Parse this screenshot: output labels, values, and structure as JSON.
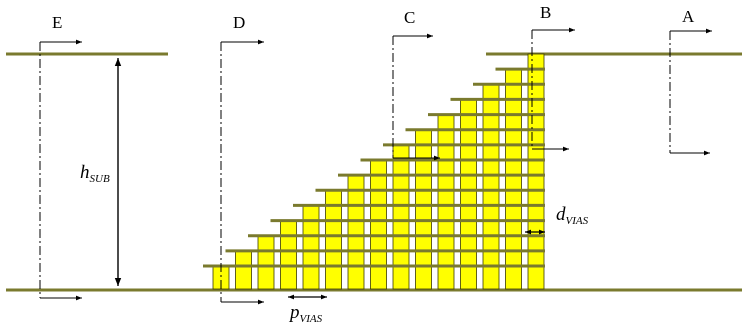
{
  "cut_labels": {
    "a": "A",
    "b": "B",
    "c": "C",
    "d": "D",
    "e": "E"
  },
  "dimensions": {
    "substrate_height": {
      "symbol": "h",
      "subscript": "SUB"
    },
    "via_diameter": {
      "symbol": "d",
      "subscript": "VIAS"
    },
    "via_pitch": {
      "symbol": "p",
      "subscript": "VIAS"
    }
  },
  "colors": {
    "plane": "#7a7a2e",
    "via_fill": "#ffff00",
    "via_stroke": "#3a3a00",
    "line": "#000000"
  },
  "staircase": {
    "via_count": 15
  }
}
